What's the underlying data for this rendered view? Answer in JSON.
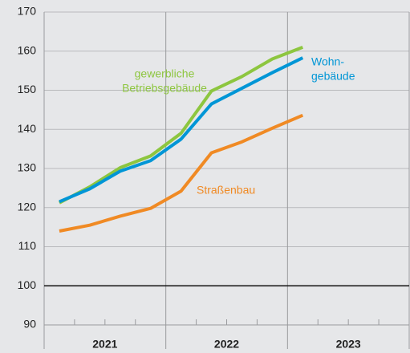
{
  "chart_data": {
    "type": "line",
    "categories": [
      null,
      null,
      null,
      null,
      null,
      null,
      null,
      null,
      null,
      null,
      null,
      null
    ],
    "years": [
      "2021",
      "2022",
      "2023"
    ],
    "series": [
      {
        "label": [
          "gewerbliche",
          "Betriebsgebäude"
        ],
        "color": "#8dc63f",
        "values": [
          121.2,
          125.3,
          130.2,
          133.2,
          139,
          149.8,
          153.5,
          158,
          161,
          null,
          null,
          null
        ]
      },
      {
        "label": [
          "Wohn-",
          "gebäude"
        ],
        "color": "#0096d6",
        "values": [
          121.5,
          124.8,
          129.3,
          132,
          137.5,
          146.5,
          150.5,
          154.5,
          158.3,
          null,
          null,
          null
        ]
      },
      {
        "label": [
          "Straßenbau"
        ],
        "color": "#f08a24",
        "values": [
          114,
          115.5,
          117.8,
          119.8,
          124.2,
          134,
          136.8,
          140.3,
          143.6,
          null,
          null,
          null
        ]
      }
    ],
    "ylim": [
      90,
      170
    ],
    "yticks": [
      90,
      100,
      110,
      120,
      130,
      140,
      150,
      160,
      170
    ],
    "reference_line": 100,
    "grid": true
  }
}
